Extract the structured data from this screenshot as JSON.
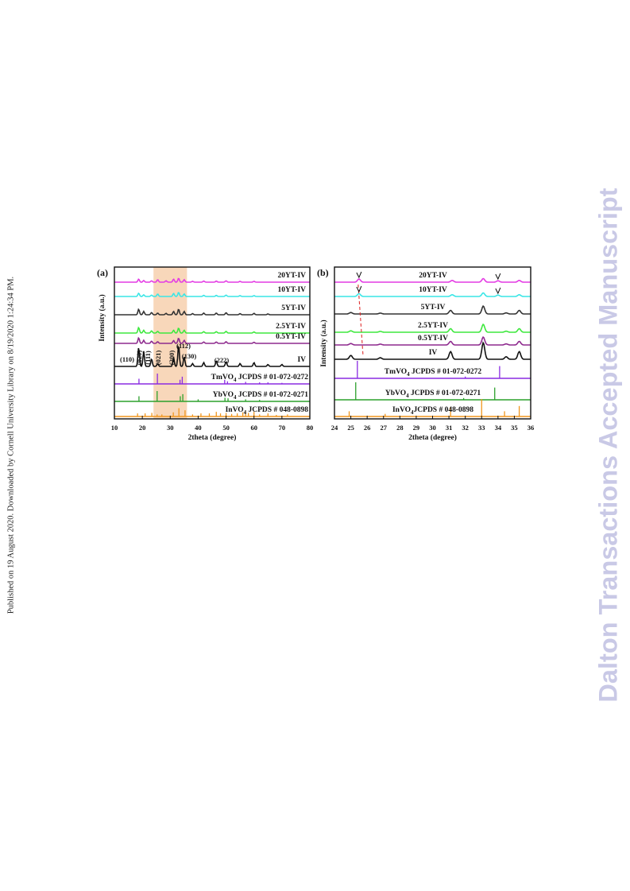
{
  "page": {
    "side_note": "Published on 19 August 2020. Downloaded by Cornell University Library on 8/19/2020 1:24:34 PM.",
    "watermark": "Dalton Transactions Accepted Manuscript"
  },
  "chart_data": [
    {
      "type": "line",
      "panel_label": "(a)",
      "xlabel": "2theta (degree)",
      "ylabel": "Intensity (a.u.)",
      "xlim": [
        10,
        80
      ],
      "x_ticks": [
        10,
        20,
        30,
        40,
        50,
        60,
        70,
        80
      ],
      "highlight_range": [
        24,
        36
      ],
      "highlight_color": "#f7d0ae",
      "series": [
        {
          "name": "20YT-IV",
          "color": "#e43ce4",
          "peaks": [
            [
              18.7,
              0.55
            ],
            [
              20.5,
              0.3
            ],
            [
              23.3,
              0.25
            ],
            [
              25.5,
              0.45
            ],
            [
              28.5,
              0.25
            ],
            [
              31.2,
              0.55
            ],
            [
              33.0,
              0.7
            ],
            [
              35.0,
              0.45
            ],
            [
              38,
              0.15
            ],
            [
              42,
              0.2
            ],
            [
              46.5,
              0.2
            ],
            [
              50,
              0.25
            ],
            [
              55,
              0.15
            ],
            [
              60,
              0.15
            ]
          ]
        },
        {
          "name": "10YT-IV",
          "color": "#3ae6e6",
          "peaks": [
            [
              18.7,
              0.6
            ],
            [
              20.5,
              0.3
            ],
            [
              23.3,
              0.25
            ],
            [
              25.5,
              0.45
            ],
            [
              31.2,
              0.55
            ],
            [
              33.0,
              0.75
            ],
            [
              35.0,
              0.45
            ],
            [
              42,
              0.2
            ],
            [
              46.5,
              0.2
            ],
            [
              50,
              0.25
            ],
            [
              55,
              0.15
            ],
            [
              60,
              0.15
            ]
          ]
        },
        {
          "name": "5YT-IV",
          "color": "#333333",
          "peaks": [
            [
              18.7,
              1.0
            ],
            [
              20.5,
              0.6
            ],
            [
              23.3,
              0.4
            ],
            [
              25.5,
              0.3
            ],
            [
              28.5,
              0.25
            ],
            [
              31.2,
              0.6
            ],
            [
              33.0,
              1.0
            ],
            [
              35.0,
              0.6
            ],
            [
              38,
              0.2
            ],
            [
              42,
              0.3
            ],
            [
              46.5,
              0.3
            ],
            [
              50,
              0.35
            ],
            [
              55,
              0.2
            ],
            [
              60,
              0.25
            ],
            [
              65,
              0.15
            ]
          ]
        },
        {
          "name": "2.5YT-IV",
          "color": "#3ee83e",
          "peaks": [
            [
              18.7,
              1.0
            ],
            [
              20.5,
              0.5
            ],
            [
              23.3,
              0.4
            ],
            [
              25.5,
              0.3
            ],
            [
              31.2,
              0.5
            ],
            [
              33.0,
              0.9
            ],
            [
              35.0,
              0.5
            ],
            [
              42,
              0.25
            ],
            [
              46.5,
              0.25
            ],
            [
              50,
              0.3
            ],
            [
              60,
              0.2
            ]
          ]
        },
        {
          "name": "0.5YT-IV",
          "color": "#8e2a8e",
          "peaks": [
            [
              18.7,
              1.0
            ],
            [
              20.5,
              0.55
            ],
            [
              23.3,
              0.4
            ],
            [
              25.5,
              0.3
            ],
            [
              31.2,
              0.5
            ],
            [
              33.0,
              0.95
            ],
            [
              35.0,
              0.55
            ],
            [
              42,
              0.25
            ],
            [
              46.5,
              0.25
            ],
            [
              50,
              0.3
            ],
            [
              60,
              0.2
            ]
          ]
        },
        {
          "name": "IV",
          "color": "#111111",
          "peaks": [
            [
              18.7,
              2.0
            ],
            [
              20.5,
              1.6
            ],
            [
              23.3,
              0.8
            ],
            [
              25.5,
              0.3
            ],
            [
              31.2,
              0.9
            ],
            [
              33.0,
              2.2
            ],
            [
              35.0,
              1.0
            ],
            [
              38,
              0.3
            ],
            [
              42,
              0.4
            ],
            [
              46.5,
              0.6
            ],
            [
              50,
              0.5
            ],
            [
              55,
              0.3
            ],
            [
              60,
              0.4
            ],
            [
              65,
              0.2
            ],
            [
              70,
              0.2
            ]
          ]
        }
      ],
      "references": [
        {
          "name": "TmVO",
          "sub": "4",
          "label_rest": " JCPDS # 01-072-0272",
          "color": "#8a2be2",
          "lines": [
            [
              18.8,
              0.5
            ],
            [
              25.4,
              1.0
            ],
            [
              33.5,
              0.4
            ],
            [
              34.3,
              0.7
            ],
            [
              49.5,
              0.4
            ],
            [
              50.5,
              0.25
            ],
            [
              57,
              0.2
            ],
            [
              62,
              0.15
            ],
            [
              65,
              0.15
            ],
            [
              70,
              0.1
            ]
          ]
        },
        {
          "name": "YbVO",
          "sub": "4",
          "label_rest": " JCPDS # 01-072-0271",
          "color": "#2ca02c",
          "lines": [
            [
              18.8,
              0.5
            ],
            [
              25.3,
              1.0
            ],
            [
              33.6,
              0.5
            ],
            [
              34.5,
              0.7
            ],
            [
              40,
              0.2
            ],
            [
              49.6,
              0.35
            ],
            [
              50.7,
              0.3
            ],
            [
              57,
              0.2
            ],
            [
              62,
              0.15
            ]
          ]
        },
        {
          "name": "InVO",
          "sub": "4",
          "label_rest": " JCPDS # 048-0898",
          "color": "#f0961e",
          "lines": [
            [
              18.3,
              0.3
            ],
            [
              21,
              0.3
            ],
            [
              23.4,
              0.35
            ],
            [
              25.3,
              0.2
            ],
            [
              27,
              0.2
            ],
            [
              31.1,
              0.4
            ],
            [
              33.1,
              0.8
            ],
            [
              35.3,
              0.6
            ],
            [
              38,
              0.2
            ],
            [
              41,
              0.3
            ],
            [
              44,
              0.3
            ],
            [
              46.5,
              0.45
            ],
            [
              48,
              0.3
            ],
            [
              50,
              0.35
            ],
            [
              52,
              0.25
            ],
            [
              54,
              0.3
            ],
            [
              56,
              0.4
            ],
            [
              57,
              0.5
            ],
            [
              58,
              0.35
            ],
            [
              60,
              0.45
            ],
            [
              62,
              0.2
            ],
            [
              65,
              0.3
            ],
            [
              68,
              0.15
            ],
            [
              72,
              0.2
            ]
          ]
        }
      ],
      "annotations": [
        "(110)",
        "(020)",
        "(111)",
        "(021)",
        "(200)",
        "(112)",
        "(130)",
        "(222)"
      ]
    },
    {
      "type": "line",
      "panel_label": "(b)",
      "xlabel": "2theta (degree)",
      "ylabel": "Intensity (a.u.)",
      "xlim": [
        24,
        36
      ],
      "x_ticks": [
        24,
        25,
        26,
        27,
        28,
        29,
        30,
        31,
        32,
        33,
        34,
        35,
        36
      ],
      "series": [
        {
          "name": "20YT-IV",
          "color": "#e43ce4",
          "peaks": [
            [
              25.5,
              0.45
            ],
            [
              31.2,
              0.25
            ],
            [
              33.1,
              0.5
            ],
            [
              34.0,
              0.2
            ],
            [
              35.3,
              0.25
            ]
          ]
        },
        {
          "name": "10YT-IV",
          "color": "#3ae6e6",
          "peaks": [
            [
              25.5,
              0.4
            ],
            [
              31.2,
              0.25
            ],
            [
              33.1,
              0.5
            ],
            [
              34.0,
              0.2
            ],
            [
              35.3,
              0.25
            ]
          ]
        },
        {
          "name": "5YT-IV",
          "color": "#333333",
          "peaks": [
            [
              25.0,
              0.2
            ],
            [
              26.8,
              0.12
            ],
            [
              31.1,
              0.5
            ],
            [
              33.1,
              1.1
            ],
            [
              34.5,
              0.15
            ],
            [
              35.3,
              0.5
            ]
          ]
        },
        {
          "name": "2.5YT-IV",
          "color": "#3ee83e",
          "peaks": [
            [
              25.0,
              0.2
            ],
            [
              26.8,
              0.12
            ],
            [
              31.1,
              0.5
            ],
            [
              33.1,
              1.1
            ],
            [
              34.5,
              0.15
            ],
            [
              35.3,
              0.5
            ]
          ]
        },
        {
          "name": "0.5YT-IV",
          "color": "#8e2a8e",
          "peaks": [
            [
              25.0,
              0.2
            ],
            [
              26.8,
              0.12
            ],
            [
              31.1,
              0.5
            ],
            [
              33.1,
              1.1
            ],
            [
              34.5,
              0.15
            ],
            [
              35.3,
              0.5
            ]
          ]
        },
        {
          "name": "IV",
          "color": "#111111",
          "peaks": [
            [
              25.0,
              0.3
            ],
            [
              26.8,
              0.12
            ],
            [
              31.1,
              0.6
            ],
            [
              33.1,
              1.3
            ],
            [
              34.5,
              0.2
            ],
            [
              35.3,
              0.6
            ]
          ]
        }
      ],
      "references": [
        {
          "name": "TmVO",
          "sub": "4",
          "label_rest": " JCPDS # 01-072-0272",
          "color": "#8a2be2",
          "lines": [
            [
              25.4,
              1.0
            ],
            [
              32.0,
              0.1
            ],
            [
              34.1,
              0.7
            ]
          ]
        },
        {
          "name": "YbVO",
          "sub": "4",
          "label_rest": " JCPDS # 01-072-0271",
          "color": "#2ca02c",
          "lines": [
            [
              25.3,
              1.0
            ],
            [
              31.9,
              0.1
            ],
            [
              33.8,
              0.7
            ]
          ]
        },
        {
          "name": "InVO",
          "sub": "4",
          "label_rest": "JCPDS # 048-0898",
          "color": "#f0961e",
          "lines": [
            [
              24.9,
              0.3
            ],
            [
              27.1,
              0.15
            ],
            [
              31.1,
              0.55
            ],
            [
              33.0,
              1.0
            ],
            [
              34.4,
              0.3
            ],
            [
              35.3,
              0.6
            ]
          ]
        }
      ],
      "guide_line_color": "#e03030"
    }
  ]
}
